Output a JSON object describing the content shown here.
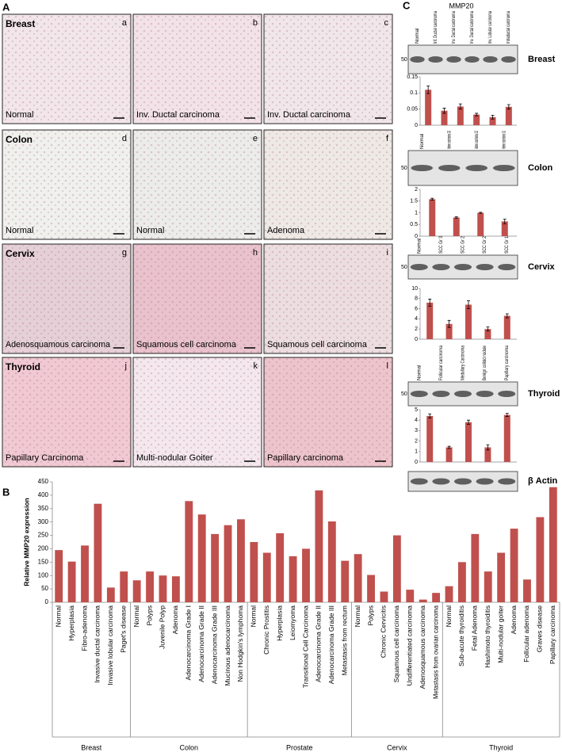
{
  "panels": {
    "a": "A",
    "b": "B",
    "c": "C"
  },
  "mmp20_label": "MMP20",
  "blot_marker": "50",
  "actin_label": "β Actin",
  "micrographs": [
    {
      "letter": "a",
      "tissue": "Breast",
      "caption": "Normal",
      "color": "#f2e6ea"
    },
    {
      "letter": "b",
      "caption": "Inv. Ductal carcinoma",
      "color": "#f3e3e8"
    },
    {
      "letter": "c",
      "caption": "Inv. Ductal carcinoma",
      "color": "#f1e7ea"
    },
    {
      "letter": "d",
      "tissue": "Colon",
      "caption": "Normal",
      "color": "#f0f0ed"
    },
    {
      "letter": "e",
      "caption": "Normal",
      "color": "#ececea"
    },
    {
      "letter": "f",
      "caption": "Adenoma",
      "color": "#efe9e6"
    },
    {
      "letter": "g",
      "tissue": "Cervix",
      "caption": "Adenosquamous carcinoma",
      "color": "#e6d0d7"
    },
    {
      "letter": "h",
      "caption": "Squamous cell carcinoma",
      "color": "#e9c2cd"
    },
    {
      "letter": "i",
      "caption": "Squamous cell carcinoma",
      "color": "#ecdde0"
    },
    {
      "letter": "j",
      "tissue": "Thyroid",
      "caption": "Papillary Carcinoma",
      "color": "#f1c9d2"
    },
    {
      "letter": "k",
      "caption": "Multi-nodular Goiter",
      "color": "#f4e8ee"
    },
    {
      "letter": "l",
      "caption": "Papillary  carcinoma",
      "color": "#eec4cc"
    }
  ],
  "chart_data": [
    {
      "type": "bar",
      "tissue": "Breast",
      "color": "#c0504d",
      "categories": [
        "Normal",
        "Inf. Ductal carcinoma",
        "Inv. Ductal carcinoma",
        "Inv. Ductal carcinoma",
        "Inv. Lobular carcinoma",
        "Intraductal carcinoma"
      ],
      "values": [
        0.11,
        0.045,
        0.058,
        0.033,
        0.025,
        0.057
      ],
      "errors": [
        0.012,
        0.008,
        0.008,
        0.004,
        0.006,
        0.007
      ],
      "ylim": [
        0,
        0.15
      ],
      "yticks": [
        0,
        0.05,
        0.1,
        0.15
      ]
    },
    {
      "type": "bar",
      "tissue": "Colon",
      "color": "#c0504d",
      "categories": [
        "Normal",
        "Adeno-carcinoma G3",
        "Adeno-carcinoma G2",
        "Adeno-carcinoma G1"
      ],
      "values": [
        1.58,
        0.8,
        1.0,
        0.63
      ],
      "errors": [
        0.04,
        0.03,
        0.02,
        0.1
      ],
      "ylim": [
        0,
        2
      ],
      "yticks": [
        0,
        0.5,
        1,
        1.5,
        2
      ]
    },
    {
      "type": "bar",
      "tissue": "Cervix",
      "color": "#c0504d",
      "categories": [
        "Normal",
        "SCC Gr 3",
        "SCC Gr 2",
        "SCC Gr 2",
        "SCC Gr 1"
      ],
      "values": [
        7.2,
        3,
        6.8,
        2,
        4.6
      ],
      "errors": [
        0.7,
        0.7,
        0.8,
        0.4,
        0.4
      ],
      "ylim": [
        0,
        10
      ],
      "yticks": [
        0,
        2,
        4,
        6,
        8,
        10
      ]
    },
    {
      "type": "bar",
      "tissue": "Thyroid",
      "color": "#c0504d",
      "categories": [
        "Normal",
        "Follicular carcinoma",
        "Medullary Carcinoma",
        "Benign colloid nodule",
        "Papillary carcinoma"
      ],
      "values": [
        4.4,
        1.4,
        3.8,
        1.4,
        4.5
      ],
      "errors": [
        0.2,
        0.1,
        0.2,
        0.25,
        0.15
      ],
      "ylim": [
        0,
        5
      ],
      "yticks": [
        0,
        1,
        2,
        3,
        4,
        5
      ]
    },
    {
      "type": "grouped_bar",
      "ylabel": "Relative MMP20 expression",
      "color": "#c0504d",
      "ylim": [
        0,
        450
      ],
      "yticks": [
        0,
        50,
        100,
        150,
        200,
        250,
        300,
        350,
        400,
        450
      ],
      "groups": [
        {
          "name": "Breast",
          "categories": [
            "Normal",
            "Hyperplasia",
            "Fibro-adenoma",
            "Invasive ductal carcinoma",
            "Invasive lobular carcinoma",
            "Paget's disease"
          ],
          "values": [
            195,
            152,
            212,
            368,
            55,
            115
          ]
        },
        {
          "name": "Colon",
          "categories": [
            "Normal",
            "Polyps",
            "Juvenile Polyp",
            "Adenoma",
            "Adenocarcinoma Grade I",
            "Adenocarcinoma Grade II",
            "Adenocarcinoma Grade III",
            "Mucinous adenocarcinoma",
            "Non Hodgkin's lymphoma"
          ],
          "values": [
            82,
            115,
            100,
            97,
            378,
            328,
            255,
            288,
            310
          ]
        },
        {
          "name": "Prostate",
          "categories": [
            "Normal",
            "Chronic Prostitis",
            "Hyperplasia",
            "Leiomyoma",
            "Transitional Cell Carcinoma",
            "Adenocarcinoma Grade II",
            "Adenocarcinoma Grade III",
            "Metastasis from rectum"
          ],
          "values": [
            225,
            185,
            258,
            172,
            200,
            418,
            302,
            155
          ]
        },
        {
          "name": "Cervix",
          "categories": [
            "Normal",
            "Polyps",
            "Chronic Cervicitis",
            "Squamous cell carcinoma",
            "Undifferentiated carcinoma",
            "Adenosquamous carcinoma",
            "Metastasis from ovarian carcinoma"
          ],
          "values": [
            180,
            102,
            40,
            250,
            47,
            10,
            35
          ]
        },
        {
          "name": "Thyroid",
          "categories": [
            "Normal",
            "Sub-acute thyroiditis",
            "Fetal Adenoma",
            "Hashimoto thyroiditis",
            "Multi-nodular goiter",
            "Adenoma",
            "Follicular adenoma",
            "Graves disease",
            "Papillary carcinoma"
          ],
          "values": [
            60,
            150,
            255,
            115,
            185,
            275,
            85,
            318,
            430
          ]
        }
      ]
    }
  ]
}
